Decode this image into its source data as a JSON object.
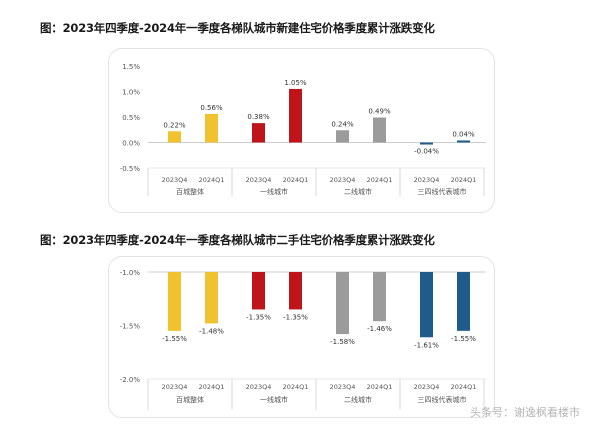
{
  "headings": {
    "chart1": "图：2023年四季度-2024年一季度各梯队城市新建住宅价格季度累计涨跌变化",
    "chart2": "图：2023年四季度-2024年一季度各梯队城市二手住宅价格季度累计涨跌变化"
  },
  "watermark": "头条号：谢逸枫看楼市",
  "chart_data": [
    {
      "type": "bar",
      "title": "图：2023年四季度-2024年一季度各梯队城市新建住宅价格季度累计涨跌变化",
      "groups": [
        "百城整体",
        "一线城市",
        "二线城市",
        "三四线代表城市"
      ],
      "categories": [
        "2023Q4",
        "2024Q1"
      ],
      "series": [
        {
          "group": "百城整体",
          "values": [
            0.22,
            0.56
          ],
          "color": "#F2C12E"
        },
        {
          "group": "一线城市",
          "values": [
            0.38,
            1.05
          ],
          "color": "#C0141B"
        },
        {
          "group": "二线城市",
          "values": [
            0.24,
            0.49
          ],
          "color": "#9B9B9B"
        },
        {
          "group": "三四线代表城市",
          "values": [
            -0.04,
            0.04
          ],
          "color": "#1F5C8A"
        }
      ],
      "data_labels": [
        [
          "0.22%",
          "0.56%"
        ],
        [
          "0.38%",
          "1.05%"
        ],
        [
          "0.24%",
          "0.49%"
        ],
        [
          "-0.04%",
          "0.04%"
        ]
      ],
      "y_ticks": [
        "1.5%",
        "1.0%",
        "0.5%",
        "0.0%",
        "-0.5%"
      ],
      "ylim": [
        -0.5,
        1.5
      ],
      "grid": false
    },
    {
      "type": "bar",
      "title": "图：2023年四季度-2024年一季度各梯队城市二手住宅价格季度累计涨跌变化",
      "groups": [
        "百城整体",
        "一线城市",
        "二线城市",
        "三四线代表城市"
      ],
      "categories": [
        "2023Q4",
        "2024Q1"
      ],
      "series": [
        {
          "group": "百城整体",
          "values": [
            -1.55,
            -1.48
          ],
          "color": "#F2C12E"
        },
        {
          "group": "一线城市",
          "values": [
            -1.35,
            -1.35
          ],
          "color": "#C0141B"
        },
        {
          "group": "二线城市",
          "values": [
            -1.58,
            -1.46
          ],
          "color": "#9B9B9B"
        },
        {
          "group": "三四线代表城市",
          "values": [
            -1.61,
            -1.55
          ],
          "color": "#1F5C8A"
        }
      ],
      "data_labels": [
        [
          "-1.55%",
          "-1.48%"
        ],
        [
          "-1.35%",
          "-1.35%"
        ],
        [
          "-1.58%",
          "-1.46%"
        ],
        [
          "-1.61%",
          "-1.55%"
        ]
      ],
      "y_ticks": [
        "-1.0%",
        "-1.5%",
        "-2.0%"
      ],
      "ylim": [
        -2.0,
        -1.0
      ],
      "grid": false
    }
  ]
}
